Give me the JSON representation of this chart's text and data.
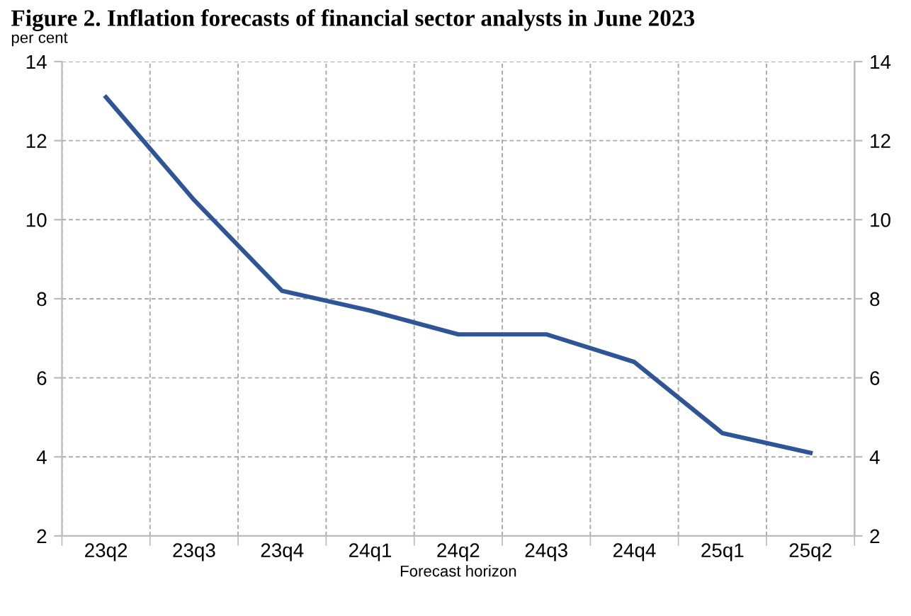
{
  "chart_data": {
    "type": "line",
    "title": "Figure 2. Inflation forecasts of financial sector analysts in June 2023",
    "ylabel": "per cent",
    "xlabel": "Forecast horizon",
    "categories": [
      "23q2",
      "23q3",
      "23q4",
      "24q1",
      "24q2",
      "24q3",
      "24q4",
      "25q1",
      "25q2"
    ],
    "series": [
      {
        "color": "#2f5597",
        "values": [
          13.1,
          10.5,
          8.2,
          7.7,
          7.1,
          7.1,
          6.4,
          4.6,
          4.1
        ]
      }
    ],
    "ylim": [
      2,
      14
    ],
    "yticks": [
      2,
      4,
      6,
      8,
      10,
      12,
      14
    ],
    "y2lim": [
      2,
      14
    ],
    "y2ticks": [
      2,
      4,
      6,
      8,
      10,
      12,
      14
    ],
    "grid": true,
    "legend": false,
    "marker": "none",
    "line_style": "solid"
  }
}
